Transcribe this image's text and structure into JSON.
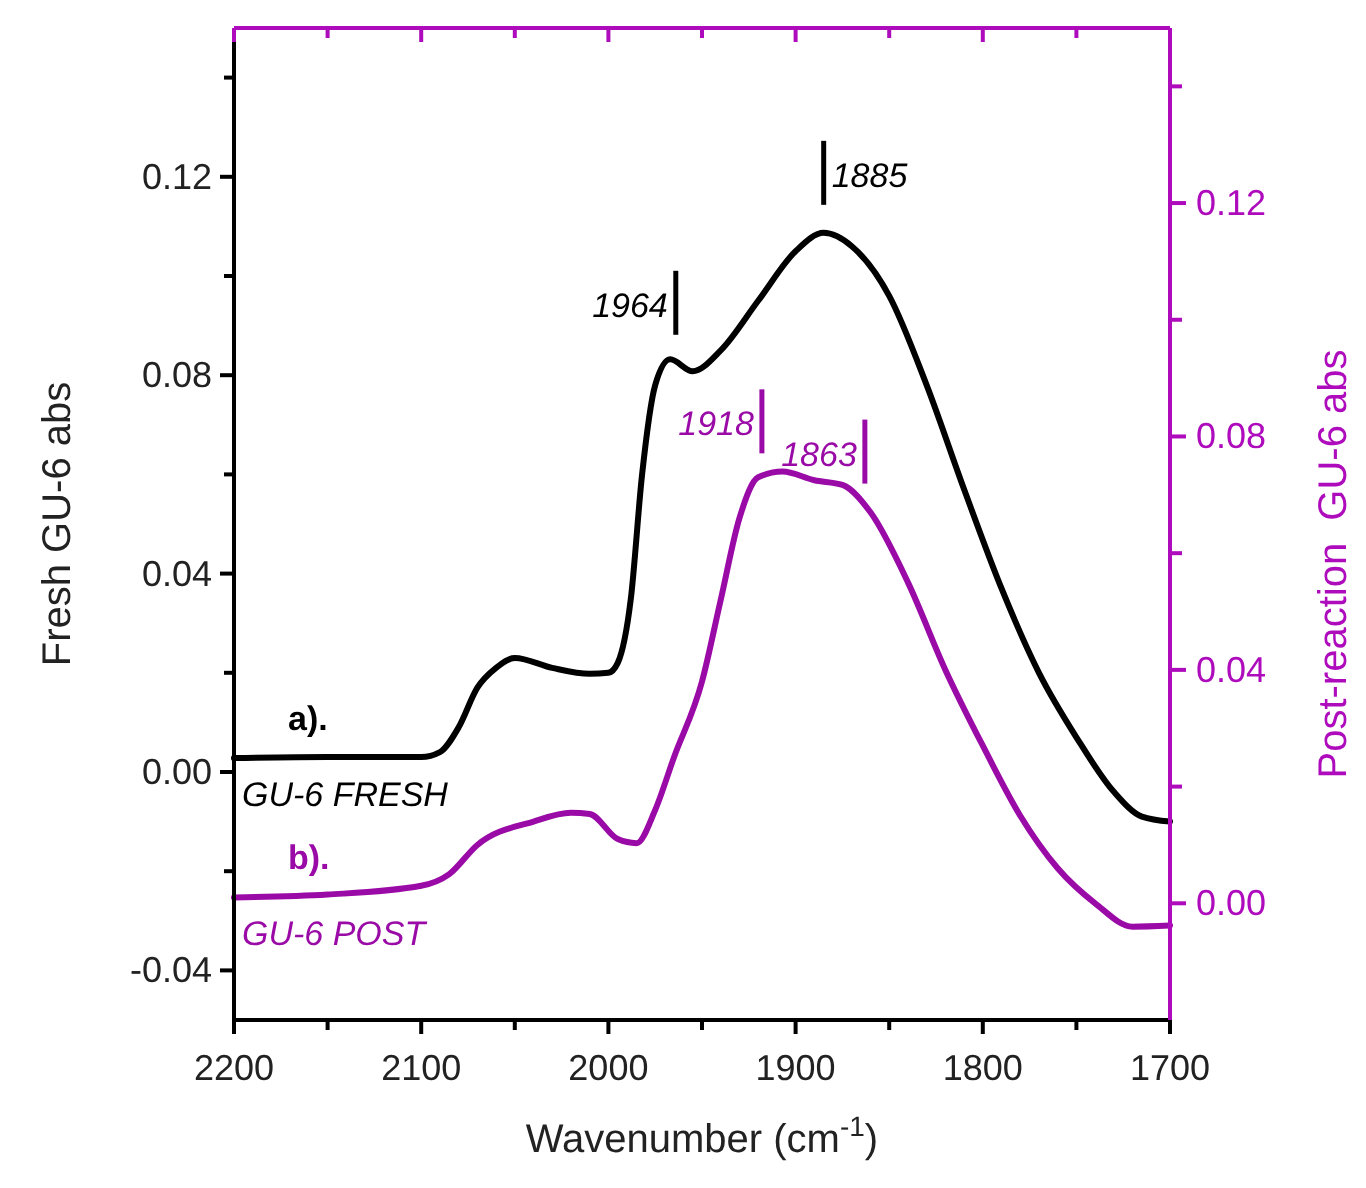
{
  "chart_data": {
    "type": "line",
    "xlabel": "Wavenumber (cm$^{-1}$)",
    "ylabel": "Fresh GU-6 abs",
    "y2label": "Post-reaction  GU-6 abs",
    "xlim": [
      2200,
      1700
    ],
    "xticks": [
      2200,
      {
        "value": 2150,
        "label": null
      },
      2100,
      {
        "value": 2050,
        "label": null
      },
      2000,
      {
        "value": 1950,
        "label": null
      },
      1900,
      {
        "value": 1850,
        "label": null
      },
      1800,
      {
        "value": 1750,
        "label": null
      },
      1700
    ],
    "ylim": [
      -0.05,
      0.15
    ],
    "yticks": [
      {
        "value": -0.04,
        "label": "-0.04"
      },
      {
        "value": -0.02,
        "label": null
      },
      {
        "value": 0,
        "label": "0.00"
      },
      {
        "value": 0.02,
        "label": null
      },
      {
        "value": 0.04,
        "label": "0.04"
      },
      {
        "value": 0.06,
        "label": null
      },
      {
        "value": 0.08,
        "label": "0.08"
      },
      {
        "value": 0.1,
        "label": null
      },
      {
        "value": 0.12,
        "label": "0.12"
      },
      {
        "value": 0.14,
        "label": null
      }
    ],
    "y2lim": [
      -0.02,
      0.15
    ],
    "y2ticks": [
      {
        "value": 0,
        "label": "0.00"
      },
      {
        "value": 0.02,
        "label": null
      },
      {
        "value": 0.04,
        "label": "0.04"
      },
      {
        "value": 0.06,
        "label": null
      },
      {
        "value": 0.08,
        "label": "0.08"
      },
      {
        "value": 0.1,
        "label": null
      },
      {
        "value": 0.12,
        "label": "0.12"
      },
      {
        "value": 0.14,
        "label": null
      }
    ],
    "grid": false,
    "legend": false,
    "marker": "none",
    "line_style": "solid",
    "series": [
      {
        "name": "GU-6 FRESH",
        "color": "#000000",
        "x": [
          2200,
          2150,
          2100,
          2090,
          2080,
          2070,
          2060,
          2050,
          2030,
          2010,
          2000,
          1995,
          1988,
          1982,
          1975,
          1967,
          1955,
          1940,
          1920,
          1900,
          1885,
          1870,
          1850,
          1830,
          1810,
          1790,
          1770,
          1750,
          1730,
          1715,
          1700
        ],
        "values": [
          0.0028,
          0.003,
          0.003,
          0.004,
          0.009,
          0.017,
          0.021,
          0.023,
          0.021,
          0.0198,
          0.02,
          0.022,
          0.035,
          0.06,
          0.078,
          0.0832,
          0.0808,
          0.085,
          0.095,
          0.105,
          0.1087,
          0.106,
          0.096,
          0.078,
          0.057,
          0.037,
          0.02,
          0.007,
          -0.004,
          -0.009,
          -0.01
        ]
      },
      {
        "name": "GU-6 POST",
        "color": "#9a0aa6",
        "axis": "y2",
        "x": [
          2200,
          2150,
          2100,
          2085,
          2070,
          2040,
          2020,
          2010,
          1995,
          1985,
          1975,
          1965,
          1950,
          1940,
          1930,
          1920,
          1907,
          1890,
          1875,
          1860,
          1840,
          1820,
          1800,
          1780,
          1760,
          1740,
          1720,
          1700
        ],
        "values": [
          0.001,
          0.0015,
          0.003,
          0.005,
          0.01,
          0.014,
          0.0155,
          0.0153,
          0.011,
          0.0103,
          0.016,
          0.025,
          0.038,
          0.052,
          0.066,
          0.073,
          0.074,
          0.0725,
          0.0717,
          0.067,
          0.055,
          0.04,
          0.027,
          0.015,
          0.006,
          0.0,
          -0.004,
          -0.0038
        ]
      }
    ],
    "annotations": [
      "a).",
      "b).",
      {
        "text": "1885",
        "x": 1885,
        "y": 0.1087
      },
      {
        "text": "1964",
        "x": 1964,
        "y": 0.0825
      },
      {
        "text": "1918",
        "x": 1918,
        "y": 0.0586
      },
      {
        "text": "1863",
        "x": 1863,
        "y": 0.0525
      }
    ]
  }
}
